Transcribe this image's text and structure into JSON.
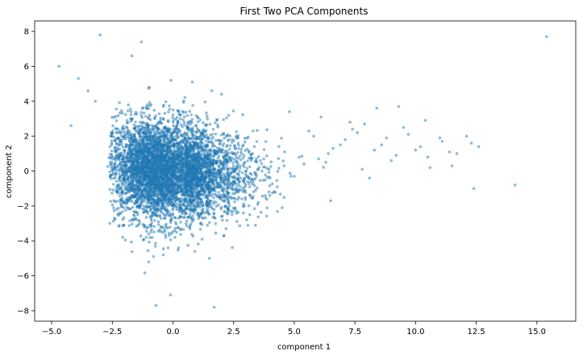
{
  "chart_data": {
    "type": "scatter",
    "title": "First Two PCA Components",
    "xlabel": "component 1",
    "ylabel": "component 2",
    "xlim": [
      -5.7,
      16.6
    ],
    "ylim": [
      -8.6,
      8.6
    ],
    "xticks": [
      -5.0,
      -2.5,
      0.0,
      2.5,
      5.0,
      7.5,
      10.0,
      12.5,
      15.0
    ],
    "xtick_labels": [
      "−5.0",
      "−2.5",
      "0.0",
      "2.5",
      "5.0",
      "7.5",
      "10.0",
      "12.5",
      "15.0"
    ],
    "yticks": [
      -8,
      -6,
      -4,
      -2,
      0,
      2,
      4,
      6,
      8
    ],
    "ytick_labels": [
      "−8",
      "−6",
      "−4",
      "−2",
      "0",
      "2",
      "4",
      "6",
      "8"
    ],
    "grid": false,
    "point_color": "#1f77b4",
    "point_alpha": 0.5,
    "series": [
      {
        "x": [
          -0.8,
          -0.2,
          -1.4,
          0.5,
          -1.9,
          0.1,
          -0.6,
          1.2,
          -1.1,
          0.3,
          -2.2,
          -0.4,
          0.8,
          -1.6,
          -0.1,
          1.8,
          -0.9,
          0.6,
          -1.3,
          2.3,
          -0.5,
          0.2,
          -2.0,
          1.1,
          -0.7,
          0.9,
          -1.7,
          1.5,
          -0.3,
          2.6,
          -1.0,
          0.4,
          -2.4,
          3.0,
          -0.2,
          1.3,
          -1.5,
          2.1,
          0.0,
          -0.6,
          3.4,
          1.7,
          -1.2,
          2.8,
          -0.8,
          0.7,
          -1.8,
          3.6,
          0.1,
          -0.4,
          1.0,
          -2.1,
          2.4,
          -1.0,
          0.5,
          4.0,
          -0.3,
          1.6,
          -1.4,
          2.9,
          3.3,
          4.6,
          5.2,
          5.8,
          6.3,
          6.9,
          7.4,
          7.8,
          8.3,
          8.8,
          9.2,
          9.7,
          10.2,
          10.6,
          11.1,
          11.7,
          12.3,
          12.6,
          4.3,
          5.0,
          5.6,
          6.1,
          6.6,
          7.1,
          7.6,
          8.1,
          8.6,
          9.0,
          9.5,
          10.0,
          10.5,
          11.0,
          11.5,
          12.1,
          4.8,
          5.4,
          6.4,
          7.3,
          8.4,
          9.3,
          10.4,
          11.4,
          14.1,
          12.4,
          15.4,
          -4.7,
          -3.9,
          -4.2,
          -3.0,
          -1.3,
          -1.7,
          0.8,
          1.6,
          -0.1,
          -0.7,
          1.7,
          -3.5,
          -3.2,
          1.5,
          2.0,
          -1.0,
          -0.4,
          0.9,
          -2.6,
          1.2,
          3.8,
          4.5,
          6.0,
          6.5,
          7.9,
          -0.5,
          0.3,
          -1.2,
          0.6,
          -0.2,
          -0.9,
          0.2,
          -1.5,
          1.0,
          -0.7
        ],
        "y": [
          0.3,
          -0.5,
          1.2,
          -0.9,
          0.6,
          1.8,
          -1.4,
          0.2,
          -0.2,
          -2.0,
          1.5,
          0.8,
          -0.4,
          -1.0,
          2.4,
          0.5,
          -2.6,
          1.0,
          0.0,
          -0.6,
          -3.2,
          2.8,
          -0.3,
          -1.6,
          1.6,
          0.9,
          2.0,
          -1.1,
          -3.8,
          0.1,
          3.0,
          -2.3,
          0.7,
          -0.8,
          -4.4,
          1.4,
          -1.8,
          0.4,
          3.5,
          -2.9,
          -0.2,
          -2.2,
          2.5,
          1.1,
          -4.9,
          -3.3,
          1.9,
          0.6,
          -1.3,
          3.7,
          -0.7,
          -1.2,
          -1.5,
          -3.6,
          2.2,
          -0.4,
          0.9,
          -0.1,
          -2.1,
          -2.4,
          2.3,
          1.1,
          0.8,
          2.0,
          0.5,
          1.5,
          2.4,
          0.1,
          1.2,
          1.9,
          0.9,
          2.1,
          1.4,
          0.2,
          1.7,
          1.0,
          1.6,
          1.4,
          -0.9,
          -0.3,
          2.3,
          3.1,
          1.3,
          1.8,
          2.2,
          -0.4,
          1.5,
          0.6,
          2.5,
          1.2,
          0.8,
          1.9,
          0.3,
          2.0,
          3.4,
          0.4,
          1.0,
          2.8,
          3.6,
          3.7,
          2.9,
          1.1,
          -0.8,
          -1.0,
          7.7,
          6.0,
          5.3,
          2.6,
          7.8,
          7.4,
          6.6,
          5.1,
          4.6,
          -7.1,
          -7.7,
          -7.8,
          4.6,
          4.0,
          -5.0,
          4.4,
          -5.2,
          -4.8,
          -4.6,
          -3.0,
          -3.9,
          -1.4,
          -2.1,
          0.7,
          -1.7,
          2.7,
          0.0,
          -0.3,
          0.5,
          -0.1,
          0.2,
          -0.6,
          0.4,
          -0.2,
          0.1,
          -0.4
        ]
      }
    ]
  }
}
